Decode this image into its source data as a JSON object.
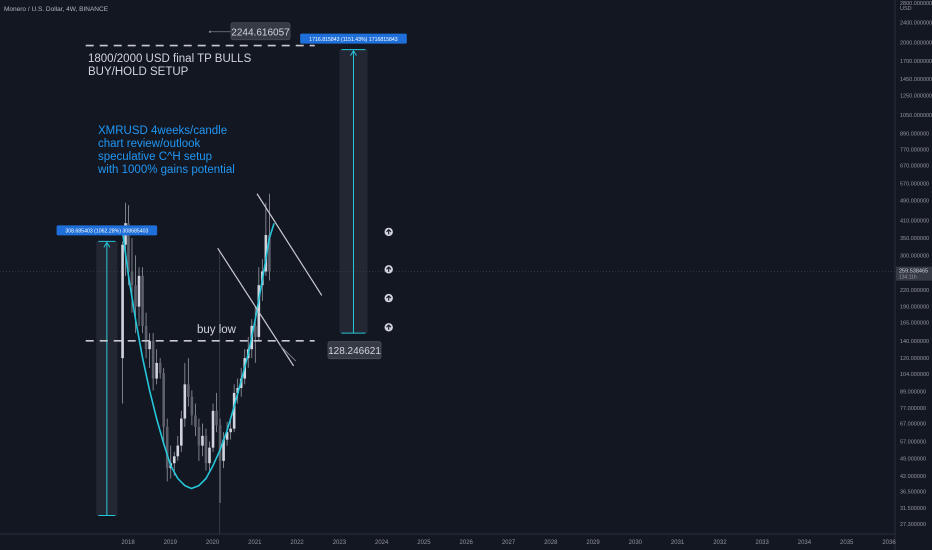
{
  "header": {
    "symbol_line": "Monero / U.S. Dollar, 4W, BINANCE"
  },
  "colors": {
    "background": "#131722",
    "candle": "#d1d4dc",
    "annotation_text": "#d1d4dc",
    "accent_text": "#2196f3",
    "curve": "#26c6da",
    "label_blue": "#1e6fd9",
    "price_label_bg": "#363a45",
    "line_white": "#c7c9cf",
    "gray": "#787b86"
  },
  "chart_data": {
    "type": "candlestick",
    "y_scale": "log",
    "x_range": [
      "2017-01",
      "2036-01"
    ],
    "y_range": [
      25,
      2800
    ],
    "currency": "USD",
    "x_ticks": [
      "2018",
      "2019",
      "2020",
      "2021",
      "2022",
      "2023",
      "2024",
      "2025",
      "2026",
      "2027",
      "2028",
      "2029",
      "2030",
      "2031",
      "2032",
      "2033",
      "2034",
      "2035",
      "2036"
    ],
    "y_ticks": [
      {
        "label": "2800.000000",
        "value": 2800
      },
      {
        "label": "2400.000000",
        "value": 2400
      },
      {
        "label": "2000.000000",
        "value": 2000
      },
      {
        "label": "1700.000000",
        "value": 1700
      },
      {
        "label": "1450.000000",
        "value": 1450
      },
      {
        "label": "1250.000000",
        "value": 1250
      },
      {
        "label": "1050.000000",
        "value": 1050
      },
      {
        "label": "890.000000",
        "value": 890
      },
      {
        "label": "770.000000",
        "value": 770
      },
      {
        "label": "670.000000",
        "value": 670
      },
      {
        "label": "570.000000",
        "value": 570
      },
      {
        "label": "490.000000",
        "value": 490
      },
      {
        "label": "410.000000",
        "value": 410
      },
      {
        "label": "350.000000",
        "value": 350
      },
      {
        "label": "300.000000",
        "value": 300
      },
      {
        "label": "220.000000",
        "value": 220
      },
      {
        "label": "190.000000",
        "value": 190
      },
      {
        "label": "165.000000",
        "value": 165
      },
      {
        "label": "140.000000",
        "value": 140
      },
      {
        "label": "120.000000",
        "value": 120
      },
      {
        "label": "104.000000",
        "value": 104
      },
      {
        "label": "89.000000",
        "value": 89
      },
      {
        "label": "77.000000",
        "value": 77
      },
      {
        "label": "67.000000",
        "value": 67
      },
      {
        "label": "57.000000",
        "value": 57
      },
      {
        "label": "49.000000",
        "value": 49
      },
      {
        "label": "42.000000",
        "value": 42
      },
      {
        "label": "36.500000",
        "value": 36.5
      },
      {
        "label": "31.500000",
        "value": 31.5
      },
      {
        "label": "27.300000",
        "value": 27.3
      }
    ],
    "current_price": {
      "label": "259.538465",
      "value": 259.538465,
      "sub_label": "134:11h"
    },
    "candles": [
      {
        "date": "2017-11-15",
        "o": 120,
        "h": 340,
        "l": 80,
        "c": 330
      },
      {
        "date": "2017-12-10",
        "o": 330,
        "h": 480,
        "l": 250,
        "c": 400
      },
      {
        "date": "2018-01-05",
        "o": 400,
        "h": 470,
        "l": 230,
        "c": 260
      },
      {
        "date": "2018-02-05",
        "o": 260,
        "h": 350,
        "l": 180,
        "c": 230
      },
      {
        "date": "2018-03-05",
        "o": 230,
        "h": 300,
        "l": 150,
        "c": 190
      },
      {
        "date": "2018-04-05",
        "o": 190,
        "h": 270,
        "l": 160,
        "c": 250
      },
      {
        "date": "2018-05-05",
        "o": 250,
        "h": 270,
        "l": 150,
        "c": 160
      },
      {
        "date": "2018-06-05",
        "o": 160,
        "h": 180,
        "l": 120,
        "c": 130
      },
      {
        "date": "2018-07-05",
        "o": 130,
        "h": 150,
        "l": 110,
        "c": 140
      },
      {
        "date": "2018-08-05",
        "o": 140,
        "h": 150,
        "l": 90,
        "c": 100
      },
      {
        "date": "2018-09-05",
        "o": 100,
        "h": 130,
        "l": 95,
        "c": 115
      },
      {
        "date": "2018-10-05",
        "o": 115,
        "h": 120,
        "l": 100,
        "c": 105
      },
      {
        "date": "2018-11-05",
        "o": 105,
        "h": 110,
        "l": 55,
        "c": 65
      },
      {
        "date": "2018-12-05",
        "o": 65,
        "h": 70,
        "l": 40,
        "c": 45
      },
      {
        "date": "2019-01-05",
        "o": 45,
        "h": 55,
        "l": 41,
        "c": 47
      },
      {
        "date": "2019-02-05",
        "o": 47,
        "h": 52,
        "l": 42,
        "c": 50
      },
      {
        "date": "2019-03-05",
        "o": 50,
        "h": 60,
        "l": 48,
        "c": 55
      },
      {
        "date": "2019-04-05",
        "o": 55,
        "h": 75,
        "l": 52,
        "c": 70
      },
      {
        "date": "2019-05-05",
        "o": 70,
        "h": 115,
        "l": 65,
        "c": 95
      },
      {
        "date": "2019-06-05",
        "o": 95,
        "h": 120,
        "l": 78,
        "c": 85
      },
      {
        "date": "2019-07-05",
        "o": 85,
        "h": 90,
        "l": 66,
        "c": 72
      },
      {
        "date": "2019-08-05",
        "o": 72,
        "h": 80,
        "l": 60,
        "c": 65
      },
      {
        "date": "2019-09-05",
        "o": 65,
        "h": 70,
        "l": 48,
        "c": 55
      },
      {
        "date": "2019-10-05",
        "o": 55,
        "h": 67,
        "l": 50,
        "c": 60
      },
      {
        "date": "2019-11-05",
        "o": 60,
        "h": 64,
        "l": 44,
        "c": 47
      },
      {
        "date": "2019-12-05",
        "o": 47,
        "h": 57,
        "l": 44,
        "c": 54
      },
      {
        "date": "2020-01-05",
        "o": 54,
        "h": 80,
        "l": 52,
        "c": 75
      },
      {
        "date": "2020-02-05",
        "o": 75,
        "h": 88,
        "l": 62,
        "c": 66
      },
      {
        "date": "2020-03-05",
        "o": 66,
        "h": 70,
        "l": 33,
        "c": 48
      },
      {
        "date": "2020-04-05",
        "o": 48,
        "h": 62,
        "l": 45,
        "c": 58
      },
      {
        "date": "2020-05-05",
        "o": 58,
        "h": 68,
        "l": 55,
        "c": 62
      },
      {
        "date": "2020-06-05",
        "o": 62,
        "h": 70,
        "l": 58,
        "c": 64
      },
      {
        "date": "2020-07-05",
        "o": 64,
        "h": 95,
        "l": 62,
        "c": 88
      },
      {
        "date": "2020-08-05",
        "o": 88,
        "h": 100,
        "l": 80,
        "c": 92
      },
      {
        "date": "2020-09-05",
        "o": 92,
        "h": 110,
        "l": 85,
        "c": 100
      },
      {
        "date": "2020-10-05",
        "o": 100,
        "h": 130,
        "l": 95,
        "c": 120
      },
      {
        "date": "2020-11-05",
        "o": 120,
        "h": 145,
        "l": 110,
        "c": 130
      },
      {
        "date": "2020-12-05",
        "o": 130,
        "h": 170,
        "l": 120,
        "c": 160
      },
      {
        "date": "2021-01-05",
        "o": 160,
        "h": 190,
        "l": 115,
        "c": 145
      },
      {
        "date": "2021-02-05",
        "o": 145,
        "h": 270,
        "l": 140,
        "c": 230
      },
      {
        "date": "2021-03-05",
        "o": 230,
        "h": 290,
        "l": 200,
        "c": 260
      },
      {
        "date": "2021-04-05",
        "o": 260,
        "h": 480,
        "l": 250,
        "c": 360
      },
      {
        "date": "2021-05-05",
        "o": 360,
        "h": 520,
        "l": 240,
        "c": 260
      }
    ],
    "curve_points": [
      {
        "date": "2017-11-15",
        "v": 370
      },
      {
        "date": "2018-01-05",
        "v": 250
      },
      {
        "date": "2018-03-05",
        "v": 170
      },
      {
        "date": "2018-05-05",
        "v": 120
      },
      {
        "date": "2018-07-05",
        "v": 90
      },
      {
        "date": "2018-09-05",
        "v": 70
      },
      {
        "date": "2018-11-05",
        "v": 56
      },
      {
        "date": "2019-01-05",
        "v": 46
      },
      {
        "date": "2019-03-05",
        "v": 41
      },
      {
        "date": "2019-05-05",
        "v": 38.5
      },
      {
        "date": "2019-07-01",
        "v": 37.5
      },
      {
        "date": "2019-09-05",
        "v": 38.5
      },
      {
        "date": "2019-11-05",
        "v": 41
      },
      {
        "date": "2020-01-05",
        "v": 46
      },
      {
        "date": "2020-03-05",
        "v": 53
      },
      {
        "date": "2020-05-05",
        "v": 63
      },
      {
        "date": "2020-07-05",
        "v": 78
      },
      {
        "date": "2020-09-05",
        "v": 98
      },
      {
        "date": "2020-11-05",
        "v": 125
      },
      {
        "date": "2021-01-05",
        "v": 170
      },
      {
        "date": "2021-03-05",
        "v": 240
      },
      {
        "date": "2021-05-05",
        "v": 350
      },
      {
        "date": "2021-06-15",
        "v": 400
      }
    ],
    "horizontal_lines": [
      {
        "name": "tp-line",
        "value": 1950,
        "from": "2017-01",
        "to": "2022-06"
      },
      {
        "name": "buy-line",
        "value": 140,
        "from": "2017-01",
        "to": "2022-06"
      }
    ],
    "trend_lines": [
      {
        "name": "channel-upper",
        "from": {
          "date": "2021-01-20",
          "v": 520
        },
        "to": {
          "date": "2022-08-01",
          "v": 210
        }
      },
      {
        "name": "channel-lower",
        "from": {
          "date": "2020-02-15",
          "v": 320
        },
        "to": {
          "date": "2021-12-01",
          "v": 112
        }
      },
      {
        "name": "pointer-line",
        "from": {
          "date": "2021-12-20",
          "v": 117
        },
        "to": {
          "date": "2021-08-01",
          "v": 135
        }
      }
    ],
    "ranges": [
      {
        "name": "range-left",
        "from_date": "2017-04-01",
        "to_date": "2017-10-01",
        "low": 29.5,
        "high": 340,
        "label": "308.685403 (1062.28%) 308685403"
      },
      {
        "name": "range-right",
        "from_date": "2023-01-01",
        "to_date": "2023-09-01",
        "low": 150,
        "high": 1880,
        "label": "1716.815843 (1151.43%) 1716815843"
      }
    ],
    "arrows": [
      {
        "date": "2024-03-01",
        "v": 370
      },
      {
        "date": "2024-03-01",
        "v": 265
      },
      {
        "date": "2024-03-01",
        "v": 205
      },
      {
        "date": "2024-03-01",
        "v": 158
      }
    ],
    "vertical_marker": {
      "date": "2020-03-01"
    },
    "annotations": {
      "tp_title": "1800/2000 USD final TP BULLS",
      "tp_subtitle": "BUY/HOLD SETUP",
      "blue_line1": "XMRUSD 4weeks/candle",
      "blue_line2": "chart review/outlook",
      "blue_line3": "speculative C^H setup",
      "blue_line4": "with 1000% gains potential",
      "buy_low": "buy low",
      "price_top": "2244.616057",
      "price_buy": "128.246621"
    }
  }
}
